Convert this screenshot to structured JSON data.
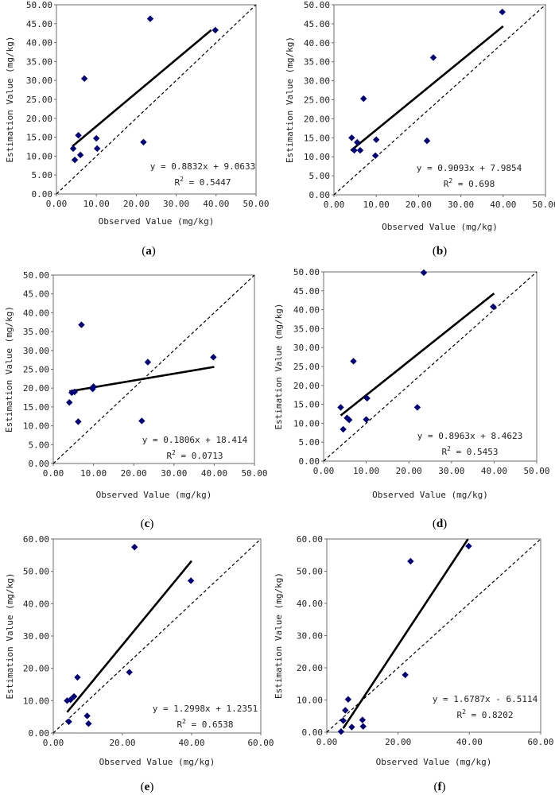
{
  "chart_data": [
    {
      "id": "a",
      "type": "scatter",
      "caption": {
        "open": "(",
        "letter": "a",
        "close": ")"
      },
      "xlabel": "Observed Value (mg/kg)",
      "ylabel": "Estimation Value (mg/kg)",
      "xlim": [
        0,
        50
      ],
      "ylim": [
        0,
        50
      ],
      "xticks": [
        "0.00",
        "10.00",
        "20.00",
        "30.00",
        "40.00",
        "50.00"
      ],
      "yticks": [
        "0.00",
        "5.00",
        "10.00",
        "15.00",
        "20.00",
        "25.00",
        "30.00",
        "35.00",
        "40.00",
        "45.00",
        "50.00"
      ],
      "points": [
        [
          4.2,
          12.0
        ],
        [
          4.6,
          9.0
        ],
        [
          5.5,
          15.5
        ],
        [
          6.0,
          10.3
        ],
        [
          7.0,
          30.5
        ],
        [
          10.0,
          14.7
        ],
        [
          10.2,
          12.0
        ],
        [
          21.8,
          13.7
        ],
        [
          23.5,
          46.3
        ],
        [
          39.8,
          43.3
        ]
      ],
      "trendline": {
        "slope": 0.8832,
        "intercept": 9.0633,
        "x_range": [
          4.0,
          38.8
        ]
      },
      "equation": "y = 0.8832x + 9.0633",
      "r2_prefix": "R",
      "r2_sup": "2",
      "r2_value": " = 0.5447"
    },
    {
      "id": "b",
      "type": "scatter",
      "caption": {
        "open": "(",
        "letter": "b",
        "close": ")"
      },
      "xlabel": "Observed Value (mg/kg)",
      "ylabel": "Estimation Value (mg/kg)",
      "xlim": [
        0,
        50
      ],
      "ylim": [
        0,
        50
      ],
      "xticks": [
        "0.00",
        "10.00",
        "20.00",
        "30.00",
        "40.00",
        "50.00"
      ],
      "yticks": [
        "0.00",
        "5.00",
        "10.00",
        "15.00",
        "20.00",
        "25.00",
        "30.00",
        "35.00",
        "40.00",
        "45.00",
        "50.00"
      ],
      "points": [
        [
          4.2,
          15.0
        ],
        [
          4.8,
          11.7
        ],
        [
          5.5,
          13.8
        ],
        [
          6.2,
          11.7
        ],
        [
          7.0,
          25.3
        ],
        [
          9.8,
          10.3
        ],
        [
          10.0,
          14.5
        ],
        [
          22.0,
          14.2
        ],
        [
          23.5,
          36.1
        ],
        [
          39.8,
          48.1
        ]
      ],
      "trendline": {
        "slope": 0.9093,
        "intercept": 7.9854,
        "x_range": [
          4.0,
          40.0
        ]
      },
      "equation": "y = 0.9093x + 7.9854",
      "r2_prefix": "R",
      "r2_sup": "2",
      "r2_value": " = 0.698"
    },
    {
      "id": "c",
      "type": "scatter",
      "caption": {
        "open": "(",
        "letter": "c",
        "close": ")"
      },
      "xlabel": "Observed Value (mg/kg)",
      "ylabel": "Estimation Value (mg/kg)",
      "xlim": [
        0,
        50
      ],
      "ylim": [
        0,
        50
      ],
      "xticks": [
        "0.00",
        "10.00",
        "20.00",
        "30.00",
        "40.00",
        "50.00"
      ],
      "yticks": [
        "0.00",
        "5.00",
        "10.00",
        "15.00",
        "20.00",
        "25.00",
        "30.00",
        "35.00",
        "40.00",
        "45.00",
        "50.00"
      ],
      "points": [
        [
          4.0,
          16.2
        ],
        [
          4.6,
          18.8
        ],
        [
          5.3,
          19.0
        ],
        [
          6.2,
          11.1
        ],
        [
          7.0,
          36.8
        ],
        [
          9.8,
          19.8
        ],
        [
          10.0,
          20.4
        ],
        [
          22.0,
          11.3
        ],
        [
          23.5,
          26.9
        ],
        [
          39.8,
          28.2
        ]
      ],
      "trendline": {
        "slope": 0.1806,
        "intercept": 18.414,
        "x_range": [
          4.0,
          40.0
        ]
      },
      "equation": "y = 0.1806x + 18.414",
      "r2_prefix": "R",
      "r2_sup": "2",
      "r2_value": " = 0.0713"
    },
    {
      "id": "d",
      "type": "scatter",
      "caption": {
        "open": "(",
        "letter": "d",
        "close": ")"
      },
      "xlabel": "Observed Value (mg/kg)",
      "ylabel": "Estimation Value (mg/kg)",
      "xlim": [
        0,
        50
      ],
      "ylim": [
        0,
        50
      ],
      "xticks": [
        "0.00",
        "10.00",
        "20.00",
        "30.00",
        "40.00",
        "50.00"
      ],
      "yticks": [
        "0.00",
        "5.00",
        "10.00",
        "15.00",
        "20.00",
        "25.00",
        "30.00",
        "35.00",
        "40.00",
        "45.00",
        "50.00"
      ],
      "points": [
        [
          4.0,
          14.2
        ],
        [
          4.6,
          8.4
        ],
        [
          5.5,
          11.4
        ],
        [
          6.0,
          10.9
        ],
        [
          7.0,
          26.4
        ],
        [
          10.0,
          11.0
        ],
        [
          10.2,
          16.6
        ],
        [
          22.0,
          14.2
        ],
        [
          23.5,
          49.8
        ],
        [
          39.8,
          40.8
        ]
      ],
      "trendline": {
        "slope": 0.8963,
        "intercept": 8.4623,
        "x_range": [
          4.0,
          40.0
        ]
      },
      "equation": "y = 0.8963x + 8.4623",
      "r2_prefix": "R",
      "r2_sup": "2",
      "r2_value": " = 0.5453"
    },
    {
      "id": "e",
      "type": "scatter",
      "caption": {
        "open": "(",
        "letter": "e",
        "close": ")"
      },
      "xlabel": "Observed Value (mg/kg)",
      "ylabel": "Estimation Value (mg/kg)",
      "xlim": [
        0,
        60
      ],
      "ylim": [
        0,
        60
      ],
      "xticks": [
        "0.00",
        "20.00",
        "40.00",
        "60.00"
      ],
      "yticks": [
        "0.00",
        "10.00",
        "20.00",
        "30.00",
        "40.00",
        "50.00",
        "60.00"
      ],
      "points": [
        [
          4.0,
          10.0
        ],
        [
          4.5,
          3.5
        ],
        [
          5.0,
          10.3
        ],
        [
          6.0,
          11.3
        ],
        [
          7.0,
          17.2
        ],
        [
          9.8,
          5.3
        ],
        [
          10.2,
          2.9
        ],
        [
          22.0,
          18.8
        ],
        [
          23.5,
          57.5
        ],
        [
          39.8,
          47.1
        ]
      ],
      "trendline": {
        "slope": 1.2998,
        "intercept": 1.2351,
        "x_range": [
          4.0,
          40.0
        ]
      },
      "equation": "y = 1.2998x + 1.2351",
      "r2_prefix": "R",
      "r2_sup": "2",
      "r2_value": " = 0.6538"
    },
    {
      "id": "f",
      "type": "scatter",
      "caption": {
        "open": "(",
        "letter": "f",
        "close": ")"
      },
      "xlabel": "Observed Value (mg/kg)",
      "ylabel": "Estimation Value (mg/kg)",
      "xlim": [
        0,
        60
      ],
      "ylim": [
        0,
        60
      ],
      "xticks": [
        "0.00",
        "20.00",
        "40.00",
        "60.00"
      ],
      "yticks": [
        "0.00",
        "10.00",
        "20.00",
        "30.00",
        "40.00",
        "50.00",
        "60.00"
      ],
      "points": [
        [
          4.0,
          0.2
        ],
        [
          4.6,
          3.6
        ],
        [
          5.2,
          6.8
        ],
        [
          6.0,
          10.2
        ],
        [
          7.0,
          1.6
        ],
        [
          10.0,
          3.8
        ],
        [
          10.2,
          1.8
        ],
        [
          22.0,
          17.8
        ],
        [
          23.5,
          53.1
        ],
        [
          39.8,
          57.8
        ]
      ],
      "trendline": {
        "slope": 1.6787,
        "intercept": -6.5114,
        "x_range": [
          4.6,
          39.6
        ]
      },
      "equation": "y = 1.6787x - 6.5114",
      "r2_prefix": "R",
      "r2_sup": "2",
      "r2_value": " = 0.8202"
    }
  ],
  "colors": {
    "marker": "#00007f",
    "line": "#000000",
    "frame": "#6d6d6d",
    "background": "#ffffff"
  }
}
